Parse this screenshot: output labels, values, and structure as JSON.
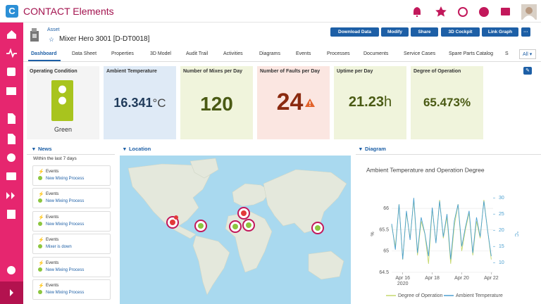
{
  "header": {
    "app_title": "CONTACT Elements"
  },
  "asset": {
    "type_label": "Asset",
    "title": "Mixer Hero 3001 [D-DT0018]"
  },
  "actions": [
    "Download Data",
    "Modify",
    "Share",
    "3D Cockpit",
    "Link Graph"
  ],
  "tabs": [
    "Dashboard",
    "Data Sheet",
    "Properties",
    "3D Model",
    "Audit Trail",
    "Activities",
    "Diagrams",
    "Events",
    "Processes",
    "Documents",
    "Service Cases",
    "Spare Parts Catalog",
    "S"
  ],
  "tab_filter": "All",
  "kpis": [
    {
      "title": "Operating Condition",
      "value": "Green"
    },
    {
      "title": "Ambient Temperature",
      "value": 16.341,
      "unit": "°C"
    },
    {
      "title": "Number of Mixes per Day",
      "value": 120
    },
    {
      "title": "Number of Faults per Day",
      "value": 24
    },
    {
      "title": "Uptime per Day",
      "value": 21.23,
      "unit": "h"
    },
    {
      "title": "Degree of Operation",
      "value": 65.473,
      "unit": "%"
    }
  ],
  "news": {
    "title": "News",
    "subtitle": "Within the last 7 days",
    "items": [
      {
        "type": "Events",
        "text": "New Mixing Process"
      },
      {
        "type": "Events",
        "text": "New Mixing Process"
      },
      {
        "type": "Events",
        "text": "New Mixing Process"
      },
      {
        "type": "Events",
        "text": "Mixer is down"
      },
      {
        "type": "Events",
        "text": "New Mixing Process"
      },
      {
        "type": "Events",
        "text": "New Mixing Process"
      }
    ]
  },
  "location": {
    "title": "Location"
  },
  "diagram": {
    "title": "Diagram",
    "chart": {
      "type": "line",
      "title": "Ambient Temperature and Operation Degree",
      "x": [
        "2020-04-15 06:00",
        "2020-04-15 12:00",
        "2020-04-15 18:00",
        "2020-04-16 00:00",
        "2020-04-16 06:00",
        "2020-04-16 12:00",
        "2020-04-16 18:00",
        "2020-04-17 00:00",
        "2020-04-17 06:00",
        "2020-04-17 12:00",
        "2020-04-17 18:00",
        "2020-04-18 00:00",
        "2020-04-18 06:00",
        "2020-04-18 12:00",
        "2020-04-18 18:00",
        "2020-04-19 00:00",
        "2020-04-19 06:00",
        "2020-04-19 12:00",
        "2020-04-19 18:00",
        "2020-04-20 00:00",
        "2020-04-20 06:00",
        "2020-04-20 12:00",
        "2020-04-20 18:00",
        "2020-04-21 00:00",
        "2020-04-21 06:00",
        "2020-04-21 12:00",
        "2020-04-21 18:00",
        "2020-04-22 00:00"
      ],
      "xlim": [
        "2020-04-15 06:00",
        "2020-04-22 03:00"
      ],
      "xticks": [
        {
          "value": "2020-04-16",
          "label": "Apr 16"
        },
        {
          "value": "2020-04-18",
          "label": "Apr 18"
        },
        {
          "value": "2020-04-20",
          "label": "Apr 20"
        },
        {
          "value": "2020-04-22",
          "label": "Apr 22"
        }
      ],
      "xtick_year": "2020",
      "ylim": [
        64.5,
        66.3
      ],
      "yticks": [
        64.5,
        65,
        65.5,
        66
      ],
      "ylabel": "%",
      "y2lim": [
        7,
        30.7
      ],
      "y2ticks": [
        10,
        15,
        20,
        25,
        30
      ],
      "y2label": "°C",
      "series": [
        {
          "name": "Degree of Operation",
          "color": "#c5d86d",
          "values": [
            65.6,
            65.1,
            66.1,
            64.8,
            65.9,
            65.3,
            66.2,
            64.9,
            65.7,
            65.4,
            64.7,
            66.0,
            65.2,
            66.2,
            65.3,
            65.8,
            64.7,
            65.6,
            66.1,
            65.0,
            65.5,
            65.9,
            64.9,
            65.7,
            65.3,
            66.2,
            65.5,
            64.8
          ]
        },
        {
          "name": "Ambient Temperature",
          "color": "#4a9fd0",
          "axis": "y2",
          "values": [
            22,
            14,
            28,
            11,
            26,
            17,
            30,
            13,
            24,
            19,
            12,
            27,
            16,
            29,
            18,
            25,
            11,
            23,
            28,
            15,
            21,
            26,
            13,
            24,
            18,
            29,
            20,
            12
          ]
        }
      ]
    }
  }
}
